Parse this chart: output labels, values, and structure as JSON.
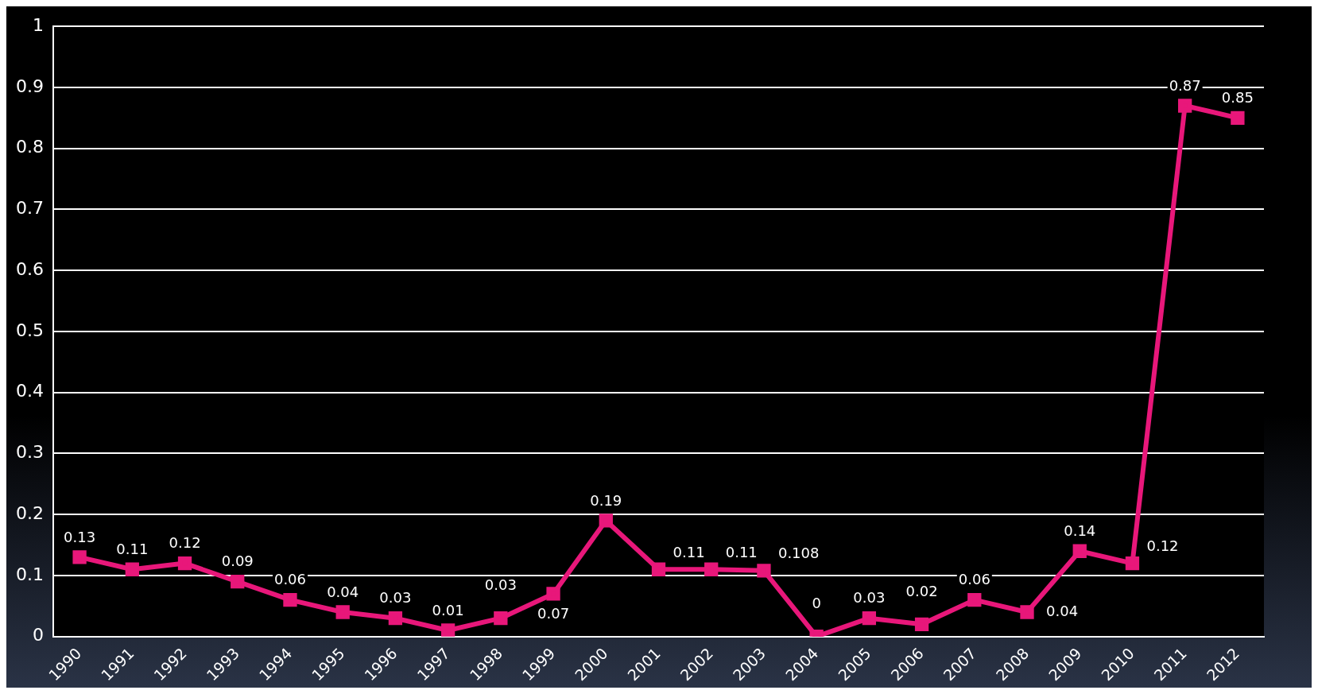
{
  "chart_data": {
    "type": "line",
    "categories": [
      "1990",
      "1991",
      "1992",
      "1993",
      "1994",
      "1995",
      "1996",
      "1997",
      "1998",
      "1999",
      "2000",
      "2001",
      "2002",
      "2003",
      "2004",
      "2005",
      "2006",
      "2007",
      "2008",
      "2009",
      "2010",
      "2011",
      "2012"
    ],
    "series": [
      {
        "color": "#e8177a",
        "values": [
          0.13,
          0.11,
          0.12,
          0.09,
          0.06,
          0.04,
          0.03,
          0.01,
          0.03,
          0.07,
          0.19,
          0.11,
          0.11,
          0.108,
          0,
          0.03,
          0.02,
          0.06,
          0.04,
          0.14,
          0.12,
          0.87,
          0.85
        ],
        "value_labels": [
          "0.13",
          "0.11",
          "0.12",
          "0.09",
          "0.06",
          "0.04",
          "0.03",
          "0.01",
          "0.03",
          "0.07",
          "0.19",
          "0.11",
          "0.11",
          "0.108",
          "0",
          "0.03",
          "0.02",
          "0.06",
          "0.04",
          "0.14",
          "0.12",
          "0.87",
          "0.85"
        ]
      }
    ],
    "ylim": [
      0,
      1
    ],
    "yticks": [
      0,
      0.1,
      0.2,
      0.3,
      0.4,
      0.5,
      0.6,
      0.7,
      0.8,
      0.9,
      1
    ],
    "grid": "y",
    "legend": false,
    "marker": "square",
    "line_style": "solid"
  }
}
